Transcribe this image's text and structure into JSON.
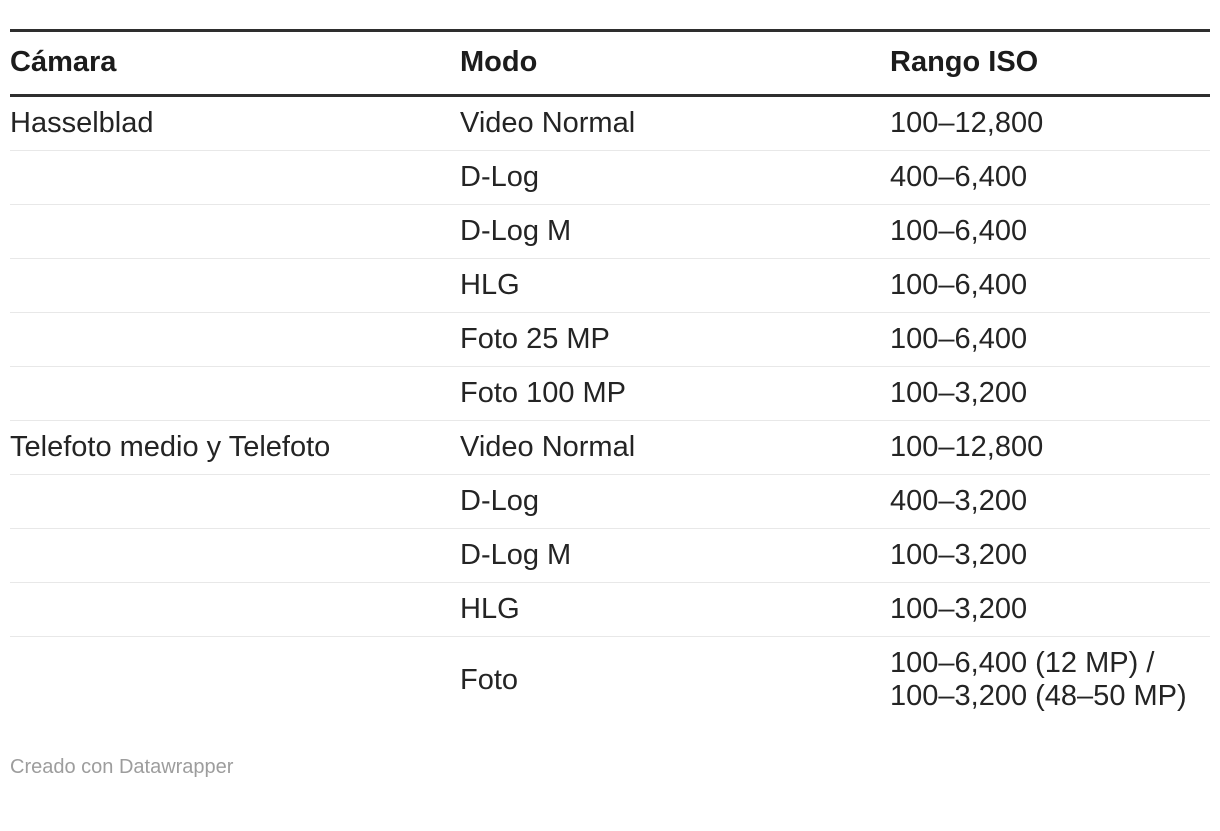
{
  "chart_data": {
    "type": "table",
    "columns": [
      "Cámara",
      "Modo",
      "Rango ISO"
    ],
    "rows": [
      [
        "Hasselblad",
        "Video Normal",
        "100–12,800"
      ],
      [
        "",
        "D-Log",
        "400–6,400"
      ],
      [
        "",
        "D-Log M",
        "100–6,400"
      ],
      [
        "",
        "HLG",
        "100–6,400"
      ],
      [
        "",
        "Foto 25 MP",
        "100–6,400"
      ],
      [
        "",
        "Foto 100 MP",
        "100–3,200"
      ],
      [
        "Telefoto medio y Telefoto",
        "Video Normal",
        "100–12,800"
      ],
      [
        "",
        "D-Log",
        "400–3,200"
      ],
      [
        "",
        "D-Log M",
        "100–3,200"
      ],
      [
        "",
        "HLG",
        "100–3,200"
      ],
      [
        "",
        "Foto",
        "100–6,400 (12 MP) / 100–3,200 (48–50 MP)"
      ]
    ],
    "layout_hints": {
      "grid": "horizontal-separators-only",
      "group_labels_on_first_row": true
    }
  },
  "footer": {
    "attribution": "Creado con Datawrapper"
  },
  "colors": {
    "background": "#ffffff",
    "heavy_rule": "#2e2e2e",
    "row_separator": "#e8e8e8",
    "header_text": "#1c1c1c",
    "body_text": "#242424",
    "footer_text": "#9d9d9d"
  }
}
